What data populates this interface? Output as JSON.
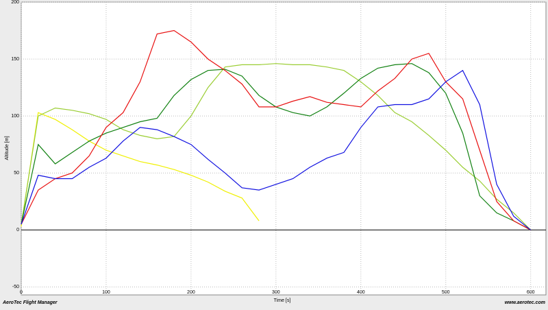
{
  "chart_data": {
    "type": "line",
    "x_label": "Time [s]",
    "y_label": "Altitude [m]",
    "footer_left": "AeroTec Flight Manager",
    "footer_right": "www.aerotec.com",
    "x": [
      0,
      20,
      40,
      60,
      80,
      100,
      120,
      140,
      160,
      180,
      200,
      220,
      240,
      260,
      280,
      300,
      320,
      340,
      360,
      380,
      400,
      420,
      440,
      460,
      480,
      500,
      520,
      540,
      560,
      580,
      600
    ],
    "series": [
      {
        "color": "#f0f000",
        "values": [
          3,
          103,
          97,
          88,
          78,
          70,
          65,
          60,
          57,
          53,
          48,
          42,
          34,
          28,
          8,
          null,
          null,
          null,
          null,
          null,
          null,
          null,
          null,
          null,
          null,
          null,
          null,
          null,
          null,
          null,
          null
        ]
      },
      {
        "color": "#9acd32",
        "values": [
          5,
          100,
          107,
          105,
          102,
          97,
          88,
          83,
          80,
          82,
          100,
          125,
          143,
          145,
          145,
          146,
          145,
          145,
          143,
          140,
          130,
          118,
          103,
          95,
          83,
          70,
          55,
          43,
          27,
          15,
          0
        ]
      },
      {
        "color": "#108010",
        "values": [
          5,
          75,
          58,
          68,
          78,
          85,
          90,
          95,
          98,
          118,
          132,
          140,
          141,
          135,
          118,
          108,
          103,
          100,
          108,
          120,
          133,
          142,
          145,
          146,
          138,
          120,
          85,
          30,
          15,
          8,
          0
        ]
      },
      {
        "color": "#e81010",
        "values": [
          5,
          35,
          45,
          50,
          65,
          90,
          103,
          130,
          172,
          175,
          165,
          150,
          140,
          128,
          108,
          108,
          113,
          117,
          112,
          110,
          108,
          122,
          133,
          150,
          155,
          130,
          115,
          70,
          25,
          8,
          0
        ]
      },
      {
        "color": "#1010e0",
        "values": [
          5,
          48,
          45,
          45,
          55,
          63,
          78,
          90,
          88,
          82,
          75,
          62,
          50,
          37,
          35,
          40,
          45,
          55,
          63,
          68,
          90,
          108,
          110,
          110,
          115,
          130,
          140,
          110,
          40,
          12,
          0
        ]
      }
    ],
    "xlim": [
      0,
      618
    ],
    "ylim": [
      -57,
      200
    ],
    "xticks": [
      0,
      100,
      200,
      300,
      400,
      500,
      600
    ],
    "yticks": [
      -50,
      0,
      50,
      100,
      150,
      200
    ],
    "grid": true
  }
}
